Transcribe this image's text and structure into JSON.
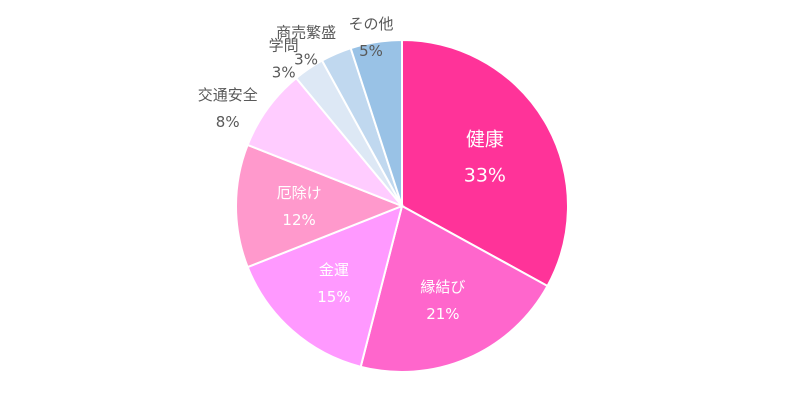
{
  "chart_data": {
    "type": "pie",
    "categories": [
      "健康",
      "縁結び",
      "金運",
      "厄除け",
      "交通安全",
      "学問",
      "商売繁盛",
      "その他"
    ],
    "values": [
      33,
      21,
      15,
      12,
      8,
      3,
      3,
      5
    ],
    "value_labels": [
      "33%",
      "21%",
      "15%",
      "12%",
      "8%",
      "3%",
      "3%",
      "5%"
    ],
    "colors": [
      "#ff3399",
      "#ff66cc",
      "#ff99ff",
      "#ff99cc",
      "#ffccff",
      "#dde8f5",
      "#c0d8ef",
      "#99c2e6"
    ],
    "label_colors": [
      "#ffffff",
      "#ffffff",
      "#ffffff",
      "#ffffff",
      "#595959",
      "#595959",
      "#595959",
      "#595959"
    ],
    "start": "top",
    "direction": "clockwise",
    "title": "",
    "legend": "none"
  }
}
